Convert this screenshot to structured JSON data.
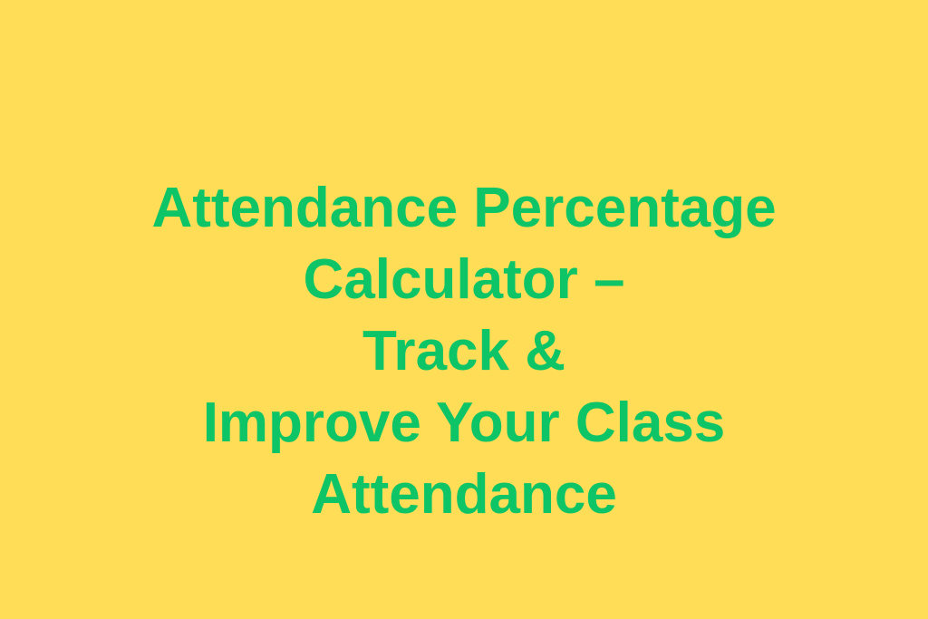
{
  "colors": {
    "background": "#FFDD57",
    "text": "#0DC566"
  },
  "title_lines": [
    "Attendance Percentage",
    "Calculator –",
    "Track &",
    "Improve Your Class",
    "Attendance"
  ]
}
